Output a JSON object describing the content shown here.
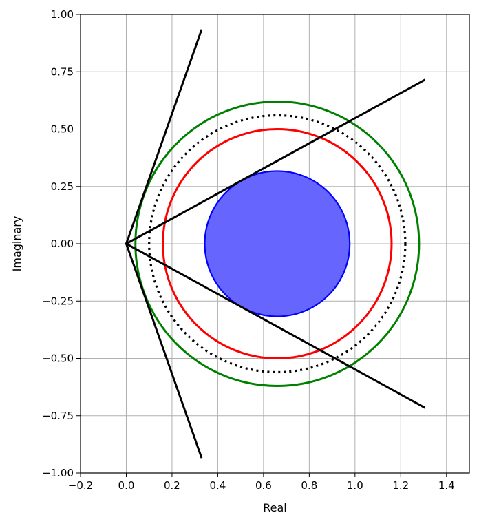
{
  "chart_data": {
    "type": "line",
    "title": "",
    "xlabel": "Real",
    "ylabel": "Imaginary",
    "xlim": [
      -0.2,
      1.5
    ],
    "ylim": [
      -1.0,
      1.0
    ],
    "grid": true,
    "x_ticks": [
      "−0.2",
      "0.0",
      "0.2",
      "0.4",
      "0.6",
      "0.8",
      "1.0",
      "1.2",
      "1.4"
    ],
    "x_tick_values": [
      -0.2,
      0.0,
      0.2,
      0.4,
      0.6,
      0.8,
      1.0,
      1.2,
      1.4
    ],
    "y_ticks": [
      "−1.00",
      "−0.75",
      "−0.50",
      "−0.25",
      "0.00",
      "0.25",
      "0.50",
      "0.75",
      "1.00"
    ],
    "y_tick_values": [
      -1.0,
      -0.75,
      -0.5,
      -0.25,
      0.0,
      0.25,
      0.5,
      0.75,
      1.0
    ],
    "circles": [
      {
        "center": [
          0.66,
          0.0
        ],
        "radius": 0.62,
        "stroke": "#008000",
        "fill": "none",
        "style": "solid"
      },
      {
        "center": [
          0.66,
          0.0
        ],
        "radius": 0.56,
        "stroke": "#000000",
        "fill": "none",
        "style": "dotted"
      },
      {
        "center": [
          0.66,
          0.0
        ],
        "radius": 0.5,
        "stroke": "#ff0000",
        "fill": "none",
        "style": "solid"
      },
      {
        "center": [
          0.66,
          0.0
        ],
        "radius": 0.317,
        "stroke": "#0000ff",
        "fill": "#6666ff",
        "style": "solid"
      }
    ],
    "lines": [
      {
        "points": [
          [
            0.0,
            0.0
          ],
          [
            0.328,
            0.93
          ]
        ],
        "color": "#000000"
      },
      {
        "points": [
          [
            0.0,
            0.0
          ],
          [
            0.328,
            -0.93
          ]
        ],
        "color": "#000000"
      },
      {
        "points": [
          [
            0.0,
            0.0
          ],
          [
            1.302,
            0.713
          ]
        ],
        "color": "#000000"
      },
      {
        "points": [
          [
            0.0,
            0.0
          ],
          [
            1.302,
            -0.713
          ]
        ],
        "color": "#000000"
      }
    ]
  }
}
